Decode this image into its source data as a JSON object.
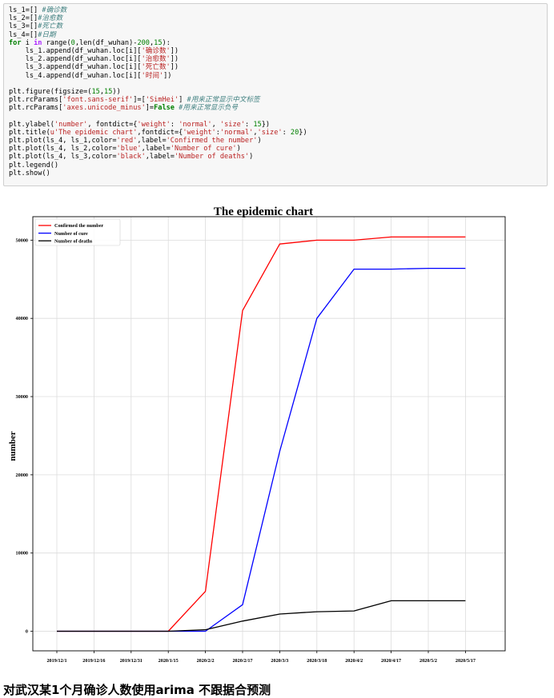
{
  "code": {
    "lines": [
      [
        {
          "t": "ls_1=[] "
        },
        {
          "t": "#确诊数",
          "c": "com"
        }
      ],
      [
        {
          "t": "ls_2=[]"
        },
        {
          "t": "#治愈数",
          "c": "com"
        }
      ],
      [
        {
          "t": "ls_3=[]"
        },
        {
          "t": "#死亡数",
          "c": "com"
        }
      ],
      [
        {
          "t": "ls_4=[]"
        },
        {
          "t": "#日期",
          "c": "com"
        }
      ],
      [
        {
          "t": "for",
          "c": "kw"
        },
        {
          "t": " i "
        },
        {
          "t": "in",
          "c": "op"
        },
        {
          "t": " range("
        },
        {
          "t": "0",
          "c": "num"
        },
        {
          "t": ",len(df_wuhan)-"
        },
        {
          "t": "200",
          "c": "num"
        },
        {
          "t": ","
        },
        {
          "t": "15",
          "c": "num"
        },
        {
          "t": "):"
        }
      ],
      [
        {
          "t": "    ls_1.append(df_wuhan.loc[i]["
        },
        {
          "t": "'确诊数'",
          "c": "str"
        },
        {
          "t": "])"
        }
      ],
      [
        {
          "t": "    ls_2.append(df_wuhan.loc[i]["
        },
        {
          "t": "'治愈数'",
          "c": "str"
        },
        {
          "t": "])"
        }
      ],
      [
        {
          "t": "    ls_3.append(df_wuhan.loc[i]["
        },
        {
          "t": "'死亡数'",
          "c": "str"
        },
        {
          "t": "])"
        }
      ],
      [
        {
          "t": "    ls_4.append(df_wuhan.loc[i]["
        },
        {
          "t": "'时间'",
          "c": "str"
        },
        {
          "t": "])"
        }
      ],
      [],
      [
        {
          "t": "plt.figure(figsize=("
        },
        {
          "t": "15",
          "c": "num"
        },
        {
          "t": ","
        },
        {
          "t": "15",
          "c": "num"
        },
        {
          "t": "))"
        }
      ],
      [
        {
          "t": "plt.rcParams["
        },
        {
          "t": "'font.sans-serif'",
          "c": "str"
        },
        {
          "t": "]=["
        },
        {
          "t": "'SimHei'",
          "c": "str"
        },
        {
          "t": "] "
        },
        {
          "t": "#用来正常显示中文标签",
          "c": "com"
        }
      ],
      [
        {
          "t": "plt.rcParams["
        },
        {
          "t": "'axes.unicode_minus'",
          "c": "str"
        },
        {
          "t": "]="
        },
        {
          "t": "False",
          "c": "kw"
        },
        {
          "t": " "
        },
        {
          "t": "#用来正常显示负号",
          "c": "com"
        }
      ],
      [],
      [
        {
          "t": "plt.ylabel("
        },
        {
          "t": "'number'",
          "c": "str"
        },
        {
          "t": ", fontdict={"
        },
        {
          "t": "'weight'",
          "c": "str"
        },
        {
          "t": ": "
        },
        {
          "t": "'normal'",
          "c": "str"
        },
        {
          "t": ", "
        },
        {
          "t": "'size'",
          "c": "str"
        },
        {
          "t": ": "
        },
        {
          "t": "15",
          "c": "num"
        },
        {
          "t": "})"
        }
      ],
      [
        {
          "t": "plt.title("
        },
        {
          "t": "u'The epidemic chart'",
          "c": "str"
        },
        {
          "t": ",fontdict={"
        },
        {
          "t": "'weight'",
          "c": "str"
        },
        {
          "t": ":"
        },
        {
          "t": "'normal'",
          "c": "str"
        },
        {
          "t": ","
        },
        {
          "t": "'size'",
          "c": "str"
        },
        {
          "t": ": "
        },
        {
          "t": "20",
          "c": "num"
        },
        {
          "t": "})"
        }
      ],
      [
        {
          "t": "plt.plot(ls_4, ls_1,color="
        },
        {
          "t": "'red'",
          "c": "str"
        },
        {
          "t": ",label="
        },
        {
          "t": "'Confirmed the number'",
          "c": "str"
        },
        {
          "t": ")"
        }
      ],
      [
        {
          "t": "plt.plot(ls_4, ls_2,color="
        },
        {
          "t": "'blue'",
          "c": "str"
        },
        {
          "t": ",label="
        },
        {
          "t": "'Number of cure'",
          "c": "str"
        },
        {
          "t": ")"
        }
      ],
      [
        {
          "t": "plt.plot(ls_4, ls_3,color="
        },
        {
          "t": "'black'",
          "c": "str"
        },
        {
          "t": ",label="
        },
        {
          "t": "'Number of deaths'",
          "c": "str"
        },
        {
          "t": ")"
        }
      ],
      [
        {
          "t": "plt.legend()"
        }
      ],
      [
        {
          "t": "plt.show()"
        }
      ]
    ]
  },
  "chart_data": {
    "type": "line",
    "title": "The epidemic chart",
    "xlabel": "",
    "ylabel": "number",
    "ylim": [
      -2500,
      53000
    ],
    "yticks": [
      0,
      10000,
      20000,
      30000,
      40000,
      50000
    ],
    "grid": true,
    "legend_position": "top-left",
    "x": [
      "2019/12/1",
      "2019/12/16",
      "2019/12/31",
      "2020/1/15",
      "2020/2/2",
      "2020/2/17",
      "2020/3/3",
      "2020/3/18",
      "2020/4/2",
      "2020/4/17",
      "2020/5/2",
      "2020/5/17"
    ],
    "series": [
      {
        "name": "Confirmed the number",
        "color": "#ff0000",
        "values": [
          0,
          0,
          0,
          0,
          5100,
          41000,
          49500,
          50000,
          50000,
          50400,
          50400,
          50400
        ]
      },
      {
        "name": "Number of cure",
        "color": "#0000ff",
        "values": [
          0,
          0,
          0,
          0,
          0,
          3400,
          23000,
          40000,
          46300,
          46300,
          46400,
          46400
        ]
      },
      {
        "name": "Number of deaths",
        "color": "#000000",
        "values": [
          0,
          0,
          0,
          0,
          200,
          1300,
          2200,
          2500,
          2600,
          3900,
          3900,
          3900
        ]
      }
    ]
  },
  "footer": {
    "heading": "对武汉某1个月确诊人数使用arima 不跟据合预测"
  }
}
